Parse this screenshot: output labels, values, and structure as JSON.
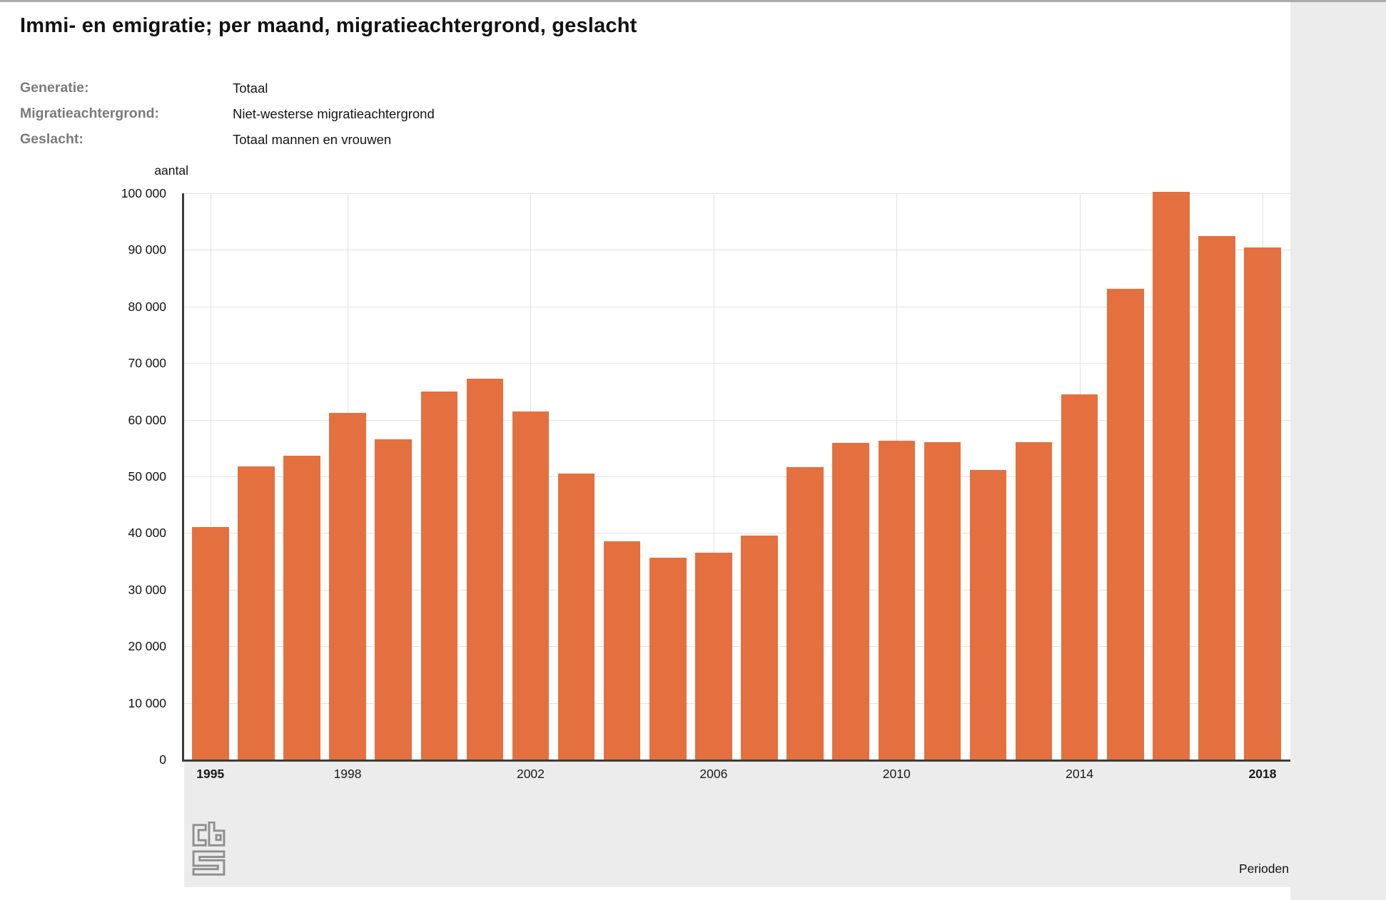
{
  "header": {
    "title": "Immi- en emigratie; per maand, migratieachtergrond, geslacht"
  },
  "filters": [
    {
      "label": "Generatie:",
      "value": "Totaal"
    },
    {
      "label": "Migratieachtergrond:",
      "value": "Niet-westerse migratieachtergrond"
    },
    {
      "label": "Geslacht:",
      "value": "Totaal mannen en vrouwen"
    }
  ],
  "chart_data": {
    "type": "bar",
    "title": "",
    "ylabel": "aantal",
    "xlabel": "Perioden",
    "ylim": [
      0,
      100000
    ],
    "grid": true,
    "bar_color": "#E5703F",
    "categories": [
      "1995",
      "1996",
      "1997",
      "1998",
      "1999",
      "2000",
      "2001",
      "2002",
      "2003",
      "2004",
      "2005",
      "2006",
      "2007",
      "2008",
      "2009",
      "2010",
      "2011",
      "2012",
      "2013",
      "2014",
      "2015",
      "2016",
      "2017",
      "2018"
    ],
    "values": [
      41000,
      51800,
      53700,
      61200,
      56500,
      65000,
      67300,
      61500,
      50500,
      38600,
      35600,
      36500,
      39500,
      51700,
      55900,
      56300,
      56000,
      51100,
      56100,
      64500,
      83100,
      100300,
      92500,
      90400
    ],
    "yticks": [
      {
        "label": "100 000",
        "value": 100000
      },
      {
        "label": "90 000",
        "value": 90000
      },
      {
        "label": "80 000",
        "value": 80000
      },
      {
        "label": "70 000",
        "value": 70000
      },
      {
        "label": "60 000",
        "value": 60000
      },
      {
        "label": "50 000",
        "value": 50000
      },
      {
        "label": "40 000",
        "value": 40000
      },
      {
        "label": "30 000",
        "value": 30000
      },
      {
        "label": "20 000",
        "value": 20000
      },
      {
        "label": "10 000",
        "value": 10000
      },
      {
        "label": "0",
        "value": 0
      }
    ],
    "xticks": [
      {
        "index": 0,
        "label": "1995",
        "bold": true
      },
      {
        "index": 3,
        "label": "1998",
        "bold": false
      },
      {
        "index": 7,
        "label": "2002",
        "bold": false
      },
      {
        "index": 11,
        "label": "2006",
        "bold": false
      },
      {
        "index": 15,
        "label": "2010",
        "bold": false
      },
      {
        "index": 19,
        "label": "2014",
        "bold": false
      },
      {
        "index": 23,
        "label": "2018",
        "bold": true
      }
    ]
  },
  "footer": {
    "xlabel": "Perioden",
    "logo": "cbs-logo"
  }
}
